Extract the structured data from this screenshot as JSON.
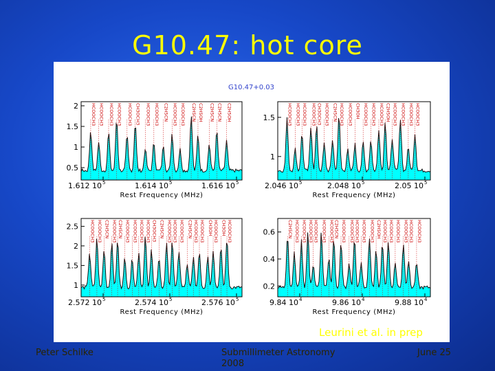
{
  "slide": {
    "title": "G10.47: hot core",
    "credit": "Leurini et al. in prep",
    "footer_left": "Peter Schilke",
    "footer_center": "Submillimeter Astronomy 2008",
    "footer_right": "June 25",
    "colors": {
      "title": "#ffff00",
      "background": "#1748c8",
      "spectrum_fill": "#00ffff",
      "line_marker": "#cc0000"
    }
  },
  "figure": {
    "source_label": "G10.47+0.03"
  },
  "chart_data": [
    {
      "type": "area",
      "xlabel": "Rest Frequency (MHz)",
      "xticks": [
        "1.612 10",
        "1.614 10",
        "1.616 10"
      ],
      "xtick_exponent": "5",
      "yticks": [
        "0.5",
        "1",
        "1.5",
        "2"
      ],
      "ylim": [
        0.2,
        2.1
      ],
      "line_labels": [
        "HCOOCH3",
        "HCOOCH3",
        "HCOOCH3",
        "HCOOCH3",
        "HCOOCH3",
        "CH3OCH3",
        "HCOOCH3",
        "HCOOCH3",
        "C2H5CN",
        "HCOOCH3",
        "HCOOCH3",
        "C2H5CN",
        "C2H5OH",
        "C2H5CN",
        "C2H5CN",
        "C2H5OH"
      ]
    },
    {
      "type": "area",
      "xlabel": "Rest Frequency (MHz)",
      "xticks": [
        "2.046 10",
        "2.048 10",
        "2.05 10"
      ],
      "xtick_exponent": "5",
      "yticks": [
        "1",
        "1.5"
      ],
      "ylim": [
        0.7,
        1.7
      ],
      "line_labels": [
        "HCOOCH3",
        "HCOOCH3",
        "HCOOCH3",
        "HCOOCH3",
        "CH3OCH3",
        "HCOOCH3",
        "C2H5CN",
        "HCOOCH3",
        "HCOOCH3",
        "CH3OH",
        "HCOOCH3",
        "HCOOCH3",
        "HCOOCH3",
        "C2H5OH",
        "HCOOCH3",
        "HCOOCH3",
        "HCOOCH3",
        "HCOOCH3"
      ]
    },
    {
      "type": "area",
      "xlabel": "Rest Frequency (MHz)",
      "xticks": [
        "2.572 10",
        "2.574 10",
        "2.576 10"
      ],
      "xtick_exponent": "5",
      "yticks": [
        "1",
        "1.5",
        "2",
        "2.5"
      ],
      "ylim": [
        0.7,
        2.7
      ],
      "line_labels": [
        "HCOOCH3",
        "HCOOCH3",
        "C2H5CN",
        "HCOOCH3",
        "C2H5CN",
        "HCOOCH3",
        "HCOOCH3",
        "HCOOCH3",
        "HCOOCH3",
        "CH3OCH3",
        "C2H5CN",
        "HCOOCH3",
        "HCOOCH3",
        "HCOOCH3",
        "C2H5CN",
        "HCOOCH3",
        "HCOOCH3",
        "CH3OH",
        "HCOOCH3",
        "CH3OH",
        "HCOOCH3"
      ]
    },
    {
      "type": "area",
      "xlabel": "Rest Frequency (MHz)",
      "xticks": [
        "9.84 10",
        "9.86 10",
        "9.88 10"
      ],
      "xtick_exponent": "4",
      "yticks": [
        "0.2",
        "0.4",
        "0.6"
      ],
      "ylim": [
        0.12,
        0.7
      ],
      "line_labels": [
        "C2H5CN",
        "HCOOCH3",
        "HCOOCH3",
        "HCOOCH3",
        "HCOOCH3",
        "HCOOCH3",
        "HCOOCH3",
        "C2H5CN",
        "HCOOCH3",
        "HCOOCH3",
        "HCOOCH3",
        "HCOOCH3",
        "HCOOCH3",
        "C2H5OH",
        "HCOOCH3",
        "HCOOCH3",
        "HCOOCH3",
        "HCOOCH3",
        "HCOOCH3",
        "HCOOCH3"
      ]
    }
  ]
}
